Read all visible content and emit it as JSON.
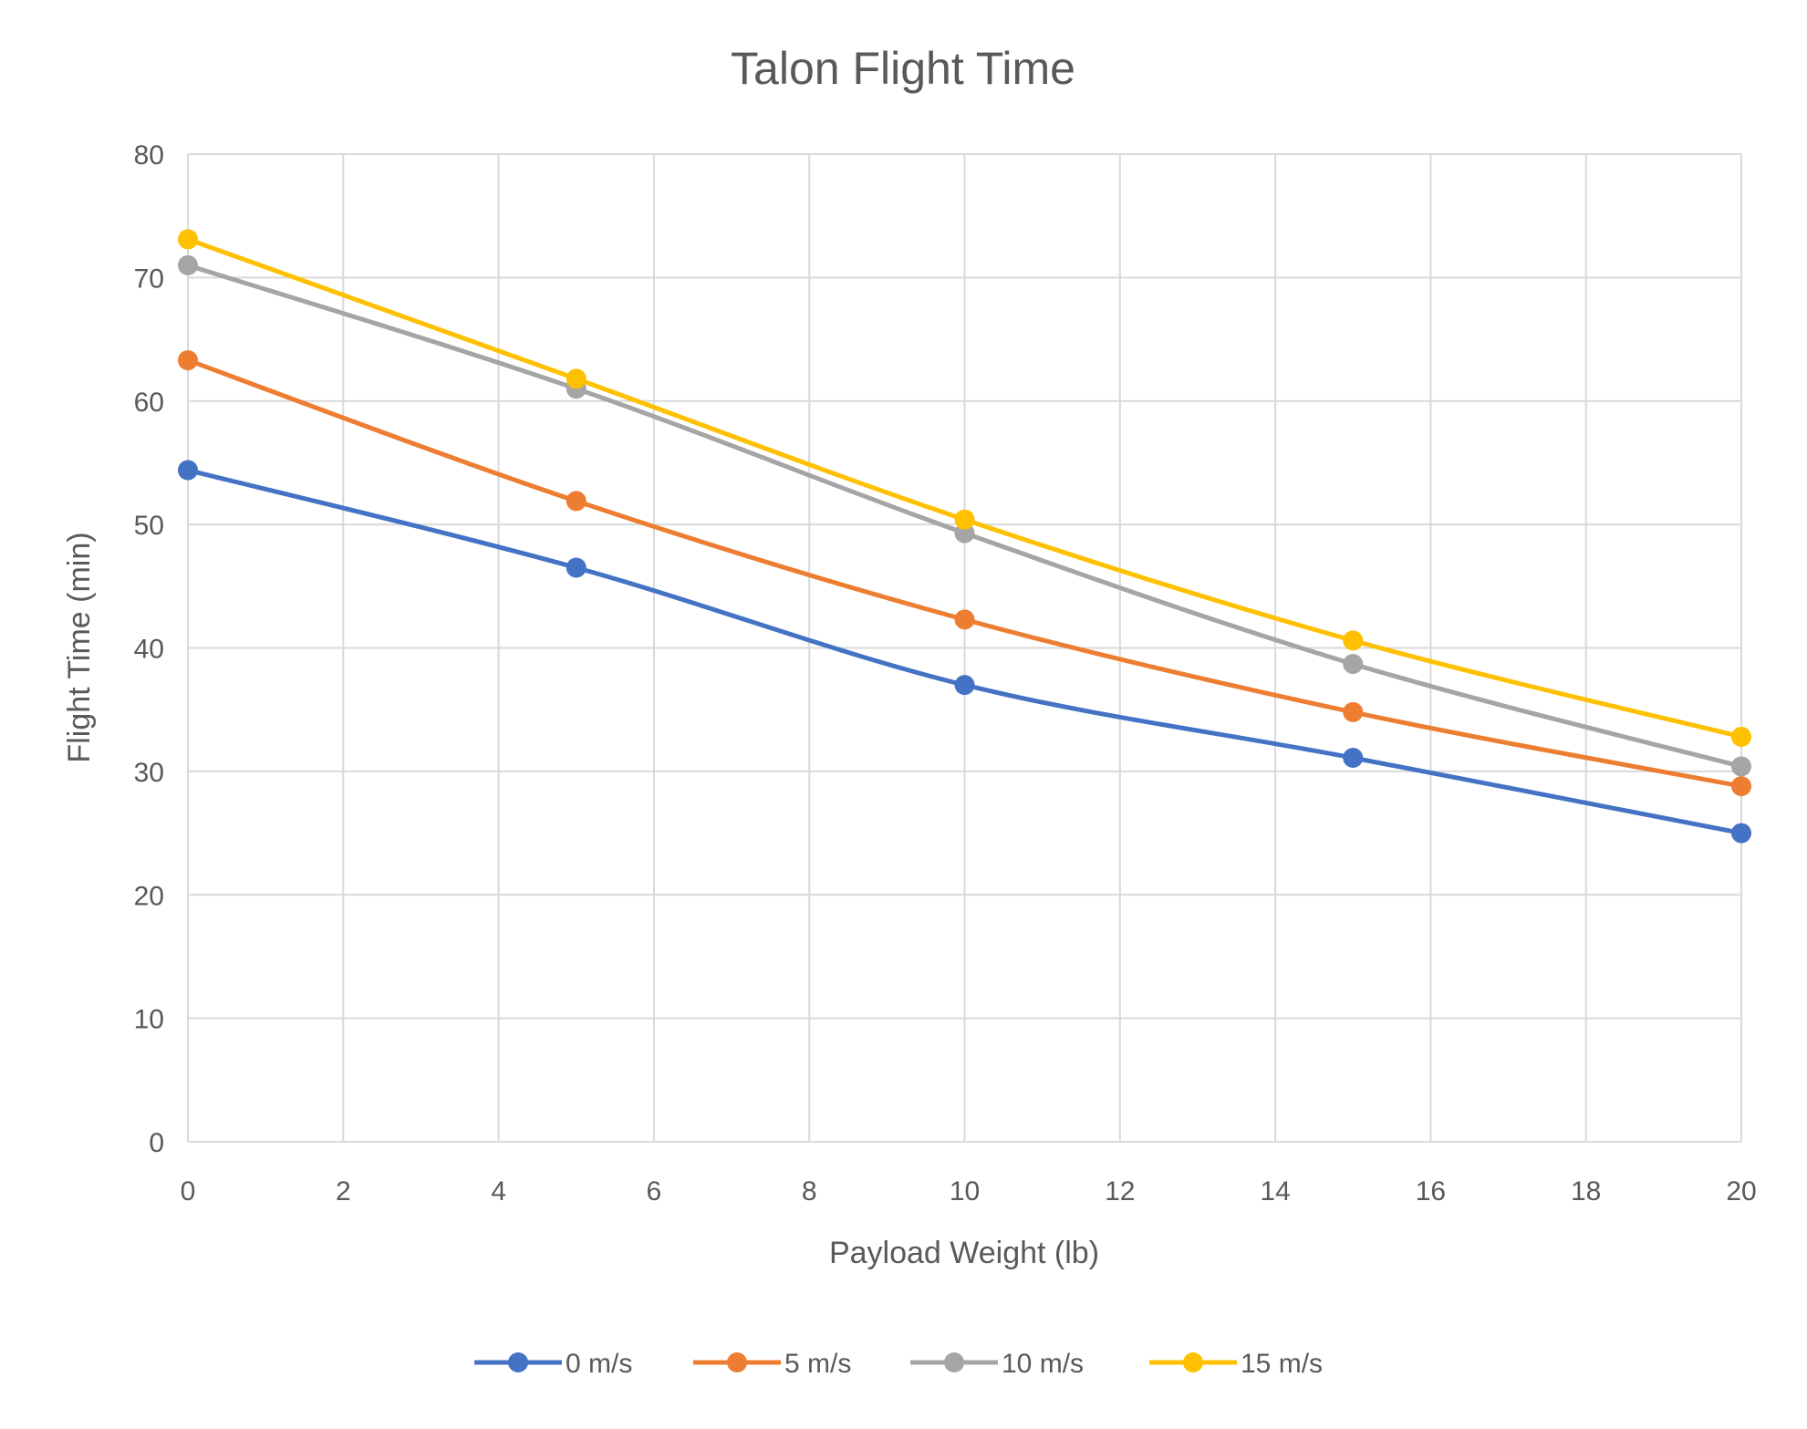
{
  "chart_data": {
    "type": "line",
    "title": "Talon Flight Time",
    "xlabel": "Payload Weight (lb)",
    "ylabel": "Flight Time (min)",
    "xlim": [
      0,
      20
    ],
    "ylim": [
      0,
      80
    ],
    "xticks": [
      0,
      2,
      4,
      6,
      8,
      10,
      12,
      14,
      16,
      18,
      20
    ],
    "yticks": [
      0,
      10,
      20,
      30,
      40,
      50,
      60,
      70,
      80
    ],
    "grid": true,
    "smoothed": true,
    "legend_position": "bottom",
    "x": [
      0,
      5,
      10,
      15,
      20
    ],
    "series": [
      {
        "name": "0 m/s",
        "color": "#4472C4",
        "values": [
          54.4,
          46.5,
          37.0,
          31.1,
          25.0
        ]
      },
      {
        "name": "5 m/s",
        "color": "#ED7D31",
        "values": [
          63.3,
          51.9,
          42.3,
          34.8,
          28.8
        ]
      },
      {
        "name": "10 m/s",
        "color": "#A5A5A5",
        "values": [
          71.0,
          61.0,
          49.3,
          38.7,
          30.4
        ]
      },
      {
        "name": "15 m/s",
        "color": "#FFC000",
        "values": [
          73.1,
          61.8,
          50.4,
          40.6,
          32.8
        ]
      }
    ]
  }
}
